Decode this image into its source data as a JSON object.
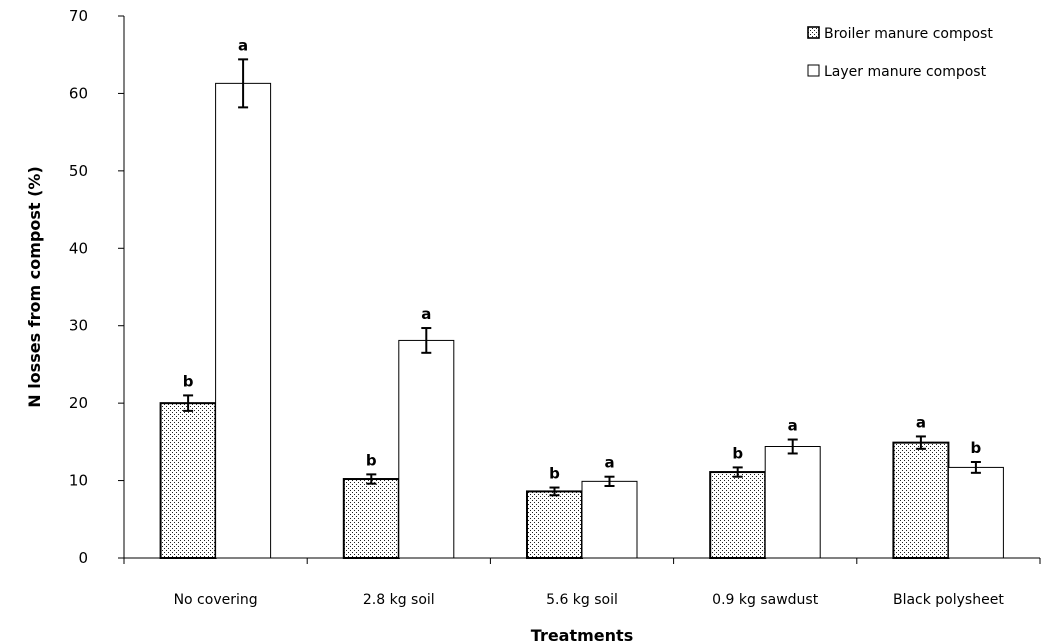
{
  "chart_data": {
    "type": "bar",
    "xlabel": "Treatments",
    "ylabel": "N losses from compost (%)",
    "ylim": [
      0,
      70
    ],
    "yticks": [
      0,
      10,
      20,
      30,
      40,
      50,
      60,
      70
    ],
    "grid": false,
    "legend_position": "top-right",
    "categories": [
      "No covering",
      "2.8 kg soil",
      "5.6 kg soil",
      "0.9 kg sawdust",
      "Black polysheet"
    ],
    "series": [
      {
        "name": "Broiler manure compost",
        "pattern": "stippled",
        "fill": "#d9d9d9",
        "values": [
          20.0,
          10.2,
          8.6,
          11.1,
          14.9
        ],
        "errors": [
          1.0,
          0.6,
          0.5,
          0.6,
          0.8
        ],
        "significance": [
          "b",
          "b",
          "b",
          "b",
          "a"
        ]
      },
      {
        "name": "Layer manure compost",
        "pattern": "none",
        "fill": "#ffffff",
        "values": [
          61.3,
          28.1,
          9.9,
          14.4,
          11.7
        ],
        "errors": [
          3.1,
          1.6,
          0.6,
          0.9,
          0.7
        ],
        "significance": [
          "a",
          "a",
          "a",
          "a",
          "b"
        ]
      }
    ]
  }
}
